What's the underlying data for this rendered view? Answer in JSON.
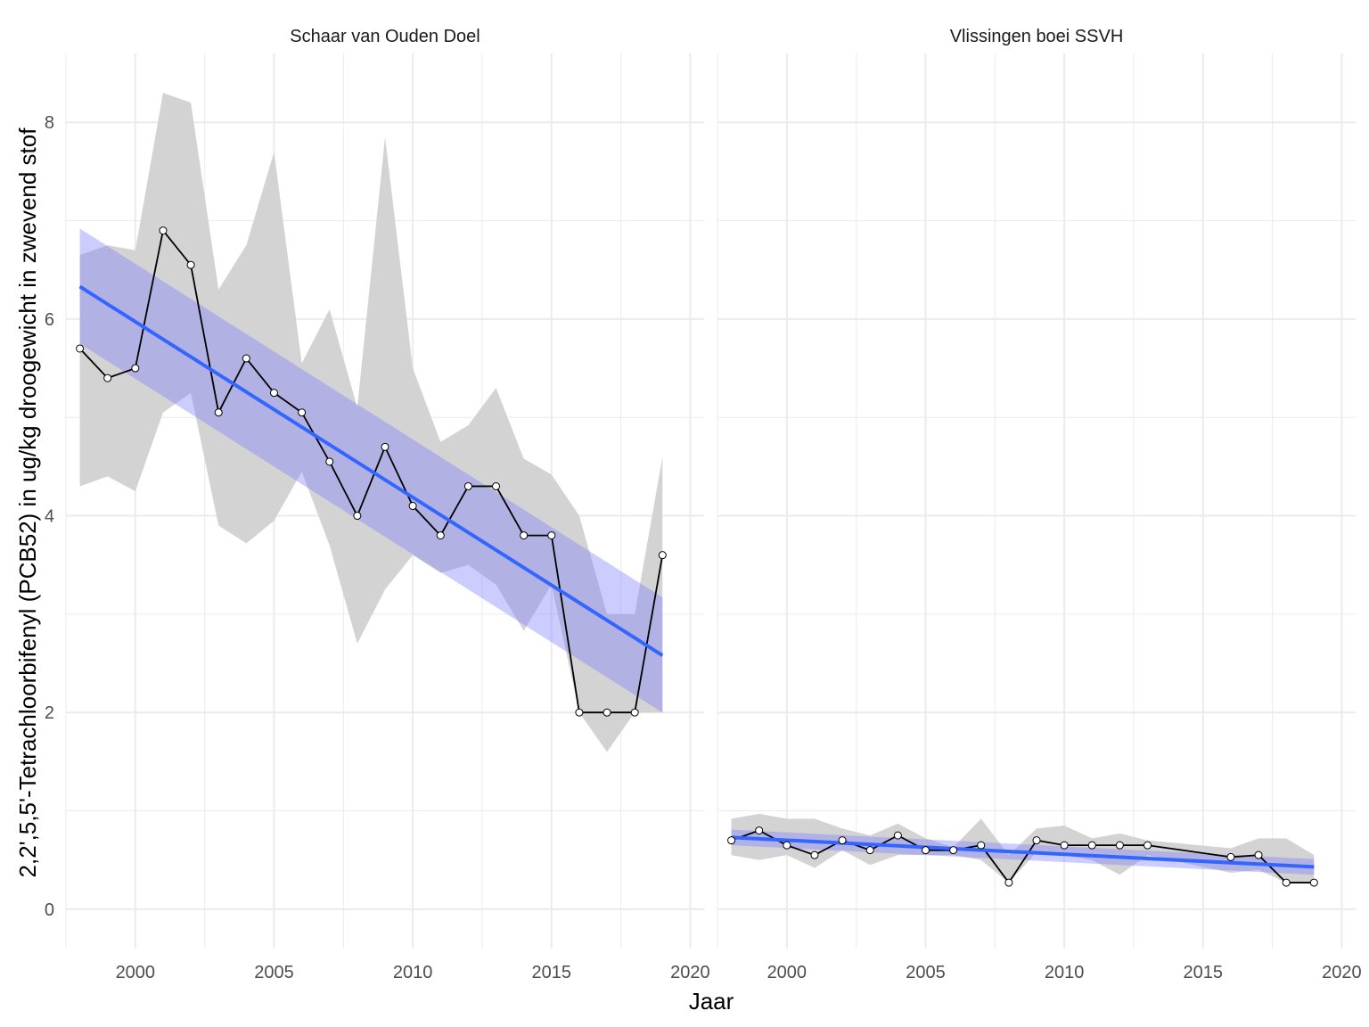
{
  "chart_data": {
    "type": "line",
    "xlabel": "Jaar",
    "ylabel": "2,2',5,5'-Tetrachloorbifenyl (PCB52) in ug/kg droogewicht in zwevend stof",
    "xlim": [
      1997.5,
      2020.5
    ],
    "ylim": [
      -0.4,
      8.7
    ],
    "x_ticks": [
      2000,
      2005,
      2010,
      2015,
      2020
    ],
    "x_tick_labels": [
      "2000",
      "2005",
      "2010",
      "2015",
      "2020"
    ],
    "y_ticks": [
      0,
      2,
      4,
      6,
      8
    ],
    "y_tick_labels": [
      "0",
      "2",
      "4",
      "6",
      "8"
    ],
    "grid": true,
    "colors": {
      "line": "#000000",
      "ribbon": "#d3d3d3",
      "trend": "#3366ff",
      "trend_band": "#8080ff",
      "grid": "#ebebeb",
      "point_fill": "#ffffff"
    },
    "panels": [
      {
        "title": "Schaar van Ouden Doel",
        "years": [
          1998,
          1999,
          2000,
          2001,
          2002,
          2003,
          2004,
          2005,
          2006,
          2007,
          2008,
          2009,
          2010,
          2011,
          2012,
          2013,
          2014,
          2015,
          2016,
          2017,
          2018,
          2019
        ],
        "values": [
          5.7,
          5.4,
          5.5,
          6.9,
          6.55,
          5.05,
          5.6,
          5.25,
          5.05,
          4.55,
          4.0,
          4.7,
          4.1,
          3.8,
          4.3,
          4.3,
          3.8,
          3.8,
          2.0,
          2.0,
          2.0,
          3.6
        ],
        "ribbon_low": [
          4.3,
          4.4,
          4.25,
          5.05,
          5.25,
          3.9,
          3.72,
          3.95,
          4.45,
          3.7,
          2.7,
          3.25,
          3.6,
          3.42,
          3.5,
          3.3,
          2.83,
          3.3,
          2.0,
          1.6,
          2.0,
          2.0
        ],
        "ribbon_high": [
          6.65,
          6.75,
          6.7,
          8.3,
          8.2,
          6.3,
          6.75,
          7.7,
          5.55,
          6.1,
          5.1,
          7.85,
          5.5,
          4.75,
          4.92,
          5.3,
          4.58,
          4.42,
          4.0,
          3.0,
          3.0,
          4.6
        ],
        "trend": {
          "x_start": 1998,
          "x_end": 2019,
          "y_start": 6.33,
          "y_end": 2.58,
          "se_low_start": 5.75,
          "se_high_start": 6.92,
          "se_low_end": 2.0,
          "se_high_end": 3.17
        }
      },
      {
        "title": "Vlissingen boei SSVH",
        "years": [
          1998,
          1999,
          2000,
          2001,
          2002,
          2003,
          2004,
          2005,
          2006,
          2007,
          2008,
          2009,
          2010,
          2011,
          2012,
          2013,
          2016,
          2017,
          2018,
          2019
        ],
        "values": [
          0.7,
          0.8,
          0.65,
          0.55,
          0.7,
          0.6,
          0.75,
          0.6,
          0.6,
          0.65,
          0.27,
          0.7,
          0.65,
          0.65,
          0.65,
          0.65,
          0.53,
          0.55,
          0.27,
          0.27
        ],
        "ribbon_low": [
          0.55,
          0.5,
          0.55,
          0.42,
          0.6,
          0.45,
          0.55,
          0.55,
          0.55,
          0.5,
          0.27,
          0.58,
          0.55,
          0.5,
          0.35,
          0.55,
          0.37,
          0.4,
          0.27,
          0.27
        ],
        "ribbon_high": [
          0.92,
          0.97,
          0.92,
          0.92,
          0.82,
          0.75,
          0.87,
          0.72,
          0.63,
          0.92,
          0.55,
          0.82,
          0.85,
          0.72,
          0.77,
          0.7,
          0.62,
          0.72,
          0.72,
          0.55
        ],
        "trend": {
          "x_start": 1998,
          "x_end": 2019,
          "y_start": 0.73,
          "y_end": 0.43,
          "se_low_start": 0.65,
          "se_high_start": 0.81,
          "se_low_end": 0.35,
          "se_high_end": 0.51
        }
      }
    ]
  }
}
